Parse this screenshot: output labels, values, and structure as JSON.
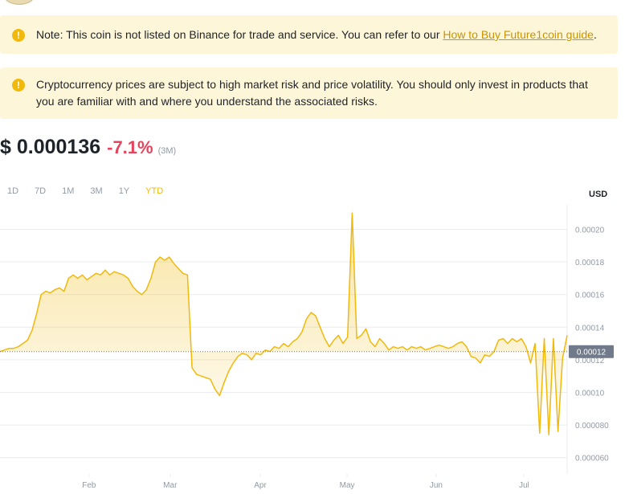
{
  "notice_listing": {
    "text": "Note: This coin is not listed on Binance for trade and service. You can refer to our ",
    "link": "How to Buy Future1coin guide",
    "suffix": ".",
    "icon": "info-icon"
  },
  "notice_risk": {
    "text": "Cryptocurrency prices are subject to high market risk and price volatility. You should only invest in products that you are familiar with and where you understand the associated risks.",
    "icon": "info-icon"
  },
  "price": {
    "value": "$ 0.000136",
    "change": "-7.1%",
    "period": "(3M)"
  },
  "range_tabs": [
    {
      "label": "1D",
      "active": false
    },
    {
      "label": "7D",
      "active": false
    },
    {
      "label": "1M",
      "active": false
    },
    {
      "label": "3M",
      "active": false
    },
    {
      "label": "1Y",
      "active": false
    },
    {
      "label": "YTD",
      "active": true
    }
  ],
  "currency": "USD",
  "colors": {
    "accent": "#f0b90b",
    "negative": "#e5445d",
    "notice_bg": "#fef6d8",
    "link": "#c99400"
  },
  "chart_data": {
    "type": "area",
    "ylim": [
      5e-05,
      0.000215
    ],
    "y_ticks": [
      "0.000060",
      "0.000080",
      "0.00010",
      "0.00012",
      "0.00014",
      "0.00016",
      "0.00018",
      "0.00020"
    ],
    "x_ticks": [
      "Feb",
      "Mar",
      "Apr",
      "May",
      "Jun",
      "Jul"
    ],
    "current_label": "0.00012",
    "current_value": 0.000125,
    "series": [
      {
        "values": [
          0.000125,
          0.000126,
          0.000127,
          0.000127,
          0.000128,
          0.00013,
          0.000132,
          0.000138,
          0.000148,
          0.00016,
          0.000162,
          0.000161,
          0.000163,
          0.000164,
          0.000162,
          0.00017,
          0.000172,
          0.00017,
          0.000172,
          0.000169,
          0.000171,
          0.000173,
          0.000172,
          0.000175,
          0.000172,
          0.000174,
          0.000173,
          0.000172,
          0.00017,
          0.000165,
          0.000162,
          0.00016,
          0.000163,
          0.00017,
          0.00018,
          0.000183,
          0.000181,
          0.000183,
          0.000179,
          0.000176,
          0.000173,
          0.000172,
          0.000115,
          0.000111,
          0.00011,
          0.000109,
          0.000108,
          0.000102,
          9.8e-05,
          0.000106,
          0.000113,
          0.000118,
          0.000122,
          0.000124,
          0.000123,
          0.00012,
          0.000124,
          0.000123,
          0.000126,
          0.000125,
          0.000128,
          0.000127,
          0.00013,
          0.000128,
          0.000131,
          0.000133,
          0.000137,
          0.000145,
          0.000149,
          0.000147,
          0.00014,
          0.000133,
          0.000128,
          0.000132,
          0.000135,
          0.00013,
          0.000134,
          0.00021,
          0.000133,
          0.000135,
          0.000139,
          0.000131,
          0.000128,
          0.000133,
          0.00013,
          0.000126,
          0.000128,
          0.000127,
          0.000128,
          0.000126,
          0.000128,
          0.000127,
          0.000128,
          0.000126,
          0.000127,
          0.000128,
          0.000129,
          0.000128,
          0.000127,
          0.000128,
          0.00013,
          0.000131,
          0.000128,
          0.000122,
          0.000121,
          0.000118,
          0.000123,
          0.000122,
          0.000125,
          0.000132,
          0.000133,
          0.00013,
          0.000133,
          0.000131,
          0.000133,
          0.000128,
          0.000118,
          0.00013,
          7.5e-05,
          0.000133,
          7.4e-05,
          0.000133,
          7.6e-05,
          0.000121,
          0.000135
        ]
      }
    ]
  }
}
